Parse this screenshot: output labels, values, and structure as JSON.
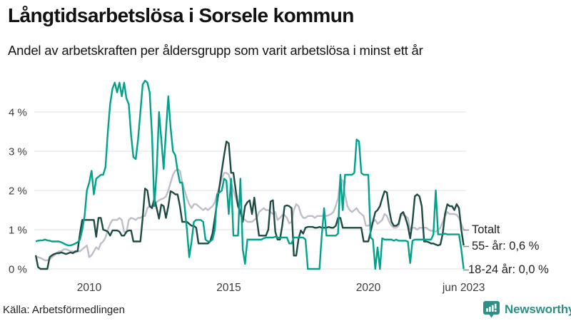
{
  "header": {
    "title": "Långtidsarbetslösa i Sorsele kommun",
    "subtitle": "Andel av arbetskraften per åldersgrupp som varit arbetslösa i minst ett år"
  },
  "chart_data": {
    "type": "line",
    "x_start": "2008-02",
    "x_end": "2023-06",
    "x_interval": "monthly",
    "ylim": [
      0,
      4.95
    ],
    "grid": "horizontal",
    "grid_color": "#e8e7ec",
    "axis_text_color": "#3b3b3b",
    "connector_color": "#8c8c8c",
    "yticks": [
      {
        "label": "0 %",
        "value": 0
      },
      {
        "label": "1 %",
        "value": 1
      },
      {
        "label": "2 %",
        "value": 2
      },
      {
        "label": "3 %",
        "value": 3
      },
      {
        "label": "4 %",
        "value": 4
      }
    ],
    "xticks": [
      {
        "label": "2010",
        "t": 2010
      },
      {
        "label": "2015",
        "t": 2015
      },
      {
        "label": "2020",
        "t": 2020
      },
      {
        "label": "jun 2023",
        "t": 2023.417
      }
    ],
    "series": [
      {
        "name": "Totalt",
        "end_label": "Totalt",
        "color": "#bfbdc9",
        "values": [
          [
            0.3,
            0.3,
            0.28,
            0.25,
            0.22,
            0.22,
            0.25,
            0.3,
            0.35,
            0.4,
            0.45
          ],
          [
            0.45,
            0.5,
            0.5,
            0.48,
            0.45,
            0.45,
            0.42,
            0.45,
            0.45,
            0.5,
            0.55,
            0.6
          ],
          [
            0.3,
            0.35,
            0.45,
            0.55,
            0.5,
            0.65,
            0.7,
            0.8,
            1.0,
            1.15,
            1.25,
            1.25
          ],
          [
            1.25,
            1.3,
            1.25,
            0.95,
            0.92,
            1.25,
            1.3,
            1.28,
            1.25,
            1.3,
            1.3,
            1.35
          ],
          [
            1.35,
            1.55,
            1.6,
            1.62,
            1.65,
            1.7,
            1.75,
            1.78,
            1.8,
            1.85,
            2.0,
            2.2
          ],
          [
            2.4,
            2.5,
            2.55,
            2.5,
            2.2,
            2.0,
            1.8,
            1.65,
            1.55,
            1.65,
            1.65,
            1.6
          ],
          [
            1.55,
            1.5,
            1.55,
            1.5,
            1.55,
            1.6,
            1.7,
            1.9,
            2.1,
            2.3,
            2.45,
            2.45
          ],
          [
            2.4,
            2.2,
            2.0,
            1.8,
            1.6,
            1.5,
            1.3,
            1.25,
            1.2,
            1.2,
            1.2,
            1.25
          ],
          [
            1.3,
            1.45,
            1.5,
            1.55,
            1.5,
            1.5,
            1.45,
            1.4,
            1.45,
            1.25,
            1.3,
            1.37
          ],
          [
            1.37,
            1.3,
            1.16,
            1.2,
            1.5,
            1.65,
            1.6,
            1.4,
            1.3,
            1.3,
            1.35,
            1.35
          ],
          [
            1.35,
            1.3,
            1.35,
            1.35,
            1.35,
            1.37,
            1.35,
            1.37,
            1.4,
            1.45,
            1.6,
            1.8
          ],
          [
            2.3,
            2.25,
            1.9,
            1.6,
            1.5,
            1.45,
            1.5,
            1.55,
            1.45,
            1.4,
            1.35,
            1.1
          ],
          [
            1.1,
            1.15,
            1.2,
            1.25,
            1.15,
            1.2,
            1.25,
            1.4,
            1.35,
            1.2,
            1.1,
            1.05
          ],
          [
            1.05,
            1.1,
            1.35,
            1.4,
            1.35,
            1.3,
            1.0,
            1.05,
            1.05,
            1.0,
            1.05,
            1.05
          ],
          [
            1.05,
            1.05,
            1.0,
            0.97,
            0.97,
            0.95,
            1.0,
            1.05,
            1.2,
            1.35,
            1.45,
            1.4
          ],
          [
            1.4,
            1.4,
            1.38,
            1.3,
            1.15,
            1.0
          ]
        ]
      },
      {
        "name": "55- år",
        "end_label": "55- år: 0,6 %",
        "color": "#1d4b43",
        "values": [
          [
            0.35,
            0.05,
            0.0,
            0.0,
            0.0,
            0.0,
            0.3,
            0.35,
            0.38,
            0.4,
            0.4
          ],
          [
            0.42,
            0.4,
            0.38,
            0.4,
            0.42,
            0.4,
            0.45,
            0.45,
            0.9,
            1.25,
            1.25,
            1.25
          ],
          [
            1.25,
            1.25,
            1.25,
            0.82,
            1.3,
            1.3,
            1.0,
            0.98,
            0.95,
            0.85,
            0.98,
            0.98
          ],
          [
            0.98,
            0.95,
            0.85,
            0.85,
            0.95,
            0.98,
            0.98,
            0.7,
            0.7,
            0.7,
            0.7,
            1.3
          ],
          [
            2.05,
            2.0,
            1.6,
            1.55,
            1.8,
            1.55,
            1.28,
            1.64,
            1.6,
            1.3,
            1.6,
            1.98
          ],
          [
            1.95,
            1.9,
            1.9,
            1.6,
            1.2,
            1.2,
            1.2,
            1.15,
            1.1,
            1.1,
            1.05,
            0.65
          ],
          [
            0.65,
            0.65,
            0.65,
            0.65,
            0.7,
            0.9,
            1.3,
            1.7,
            2.1,
            2.5,
            2.9,
            3.25
          ],
          [
            3.2,
            2.45,
            2.45,
            2.0,
            1.6,
            1.45,
            1.2,
            1.6,
            1.7,
            1.75,
            1.4,
            1.82
          ],
          [
            1.3,
            0.85,
            0.85,
            0.85,
            0.85,
            1.0,
            1.72,
            1.75,
            0.95,
            0.75,
            0.75,
            1.1
          ],
          [
            1.6,
            1.62,
            1.6,
            1.55,
            0.34,
            0.34,
            0.77,
            0.98,
            0.9,
            1.05,
            1.07,
            1.07
          ],
          [
            1.07,
            1.05,
            1.05,
            1.07,
            1.05,
            1.05,
            1.05,
            1.07,
            1.05,
            1.05,
            1.1,
            1.3
          ],
          [
            1.3,
            1.05,
            1.05,
            1.05,
            1.05,
            1.05,
            1.05,
            1.05,
            1.05,
            1.05,
            0.7,
            0.7
          ],
          [
            0.7,
            0.95,
            1.2,
            1.45,
            1.5,
            1.6,
            1.8,
            1.98,
            1.95,
            1.5,
            1.2,
            1.1
          ],
          [
            1.1,
            1.15,
            1.4,
            1.45,
            1.3,
            1.1,
            0.78,
            1.2,
            1.85,
            1.9,
            1.85,
            1.6
          ],
          [
            0.7,
            0.7,
            0.68,
            0.65,
            0.65,
            0.62,
            0.6,
            0.62,
            0.9,
            1.4,
            1.65,
            1.6
          ],
          [
            1.6,
            1.5,
            1.65,
            1.55,
            1.0,
            0.6
          ]
        ]
      },
      {
        "name": "18-24 år",
        "end_label": "18-24 år: 0,0 %",
        "color": "#00a28b",
        "values": [
          [
            0.7,
            0.72,
            0.73,
            0.73,
            0.75,
            0.73,
            0.72,
            0.7,
            0.7,
            0.7,
            0.7
          ],
          [
            0.68,
            0.65,
            0.62,
            0.6,
            0.6,
            0.62,
            0.65,
            0.68,
            0.75,
            1.0,
            1.35,
            2.0
          ],
          [
            2.2,
            2.5,
            1.9,
            2.3,
            2.35,
            2.4,
            2.4,
            2.6,
            3.5,
            4.2,
            4.6,
            4.75
          ],
          [
            4.5,
            4.75,
            4.4,
            4.75,
            4.35,
            4.2,
            3.4,
            2.85,
            2.8,
            3.3,
            4.0,
            4.7
          ],
          [
            4.8,
            4.75,
            4.5,
            3.4,
            1.6,
            2.5,
            4.0,
            3.3,
            2.55,
            3.5,
            4.4,
            3.6
          ],
          [
            3.0,
            2.9,
            2.5,
            2.2,
            2.2,
            1.6,
            1.0,
            0.3,
            0.7,
            1.2,
            1.25,
            1.25
          ],
          [
            1.25,
            1.2,
            0.75,
            0.7,
            0.7,
            0.75,
            1.0,
            1.9,
            1.95,
            2.0,
            2.3,
            2.25
          ],
          [
            1.4,
            2.3,
            0.85,
            0.85,
            0.85,
            2.3,
            0.5,
            0.13,
            0.75,
            0.75,
            0.75,
            0.75
          ],
          [
            0.75,
            0.75,
            0.75,
            0.78,
            0.8,
            0.8,
            0.8,
            0.8,
            0.82,
            0.8,
            0.8,
            0.8
          ],
          [
            0.8,
            0.8,
            0.65,
            0.65,
            0.8,
            0.8,
            0.8,
            0.8,
            0.8,
            0.75,
            0.0,
            0.0
          ],
          [
            0.0,
            0.0,
            0.0,
            0.0,
            0.85,
            1.55,
            0.85,
            0.85,
            0.85,
            0.85,
            0.85,
            0.9
          ],
          [
            2.4,
            1.5,
            2.4,
            2.4,
            2.4,
            2.4,
            2.45,
            3.3,
            3.25,
            2.45,
            2.4,
            2.4
          ],
          [
            2.4,
            0.8,
            0.75,
            0.0,
            0.55,
            0.0,
            0.78,
            0.75,
            0.75,
            0.75,
            0.75,
            0.72
          ],
          [
            0.75,
            0.72,
            0.72,
            0.72,
            0.72,
            0.7,
            0.15,
            0.72,
            0.75,
            0.75,
            0.75,
            0.75
          ],
          [
            0.75,
            0.75,
            0.75,
            0.75,
            0.88,
            2.0,
            0.88,
            0.88,
            0.88,
            0.9,
            0.88,
            0.88
          ],
          [
            0.88,
            0.88,
            0.88,
            0.88,
            0.5,
            0.0
          ]
        ]
      }
    ]
  },
  "footer": {
    "source": "Källa: Arbetsförmedlingen",
    "brand": "Newsworthy",
    "brand_color": "#2f8e86"
  }
}
